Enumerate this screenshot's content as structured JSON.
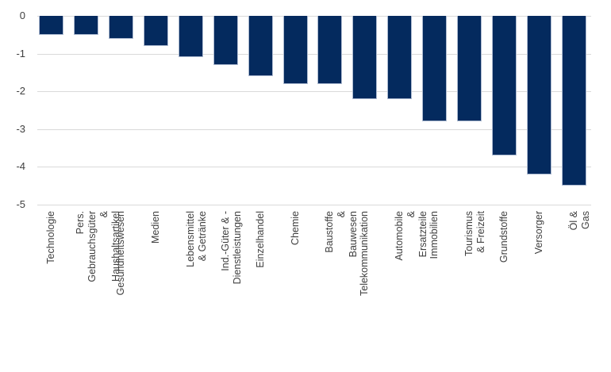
{
  "chart_data": {
    "type": "bar",
    "title": "",
    "xlabel": "",
    "ylabel": "",
    "categories": [
      "Technologie",
      "Pers. Gebrauchsgüter\n& Haushaltsartikel",
      "Gesundheitswesen",
      "Medien",
      "Lebensmittel & Getränke",
      "Ind.-Güter & -Dienstleistungen",
      "Einzelhandel",
      "Chemie",
      "Baustoffe & Bauwesen",
      "Telekommunikation",
      "Automobile & Ersatzteile",
      "Immobilien",
      "Tourismus & Freizeit",
      "Grundstoffe",
      "Versorger",
      "Öl & Gas"
    ],
    "values": [
      -0.5,
      -0.5,
      -0.6,
      -0.8,
      -1.1,
      -1.3,
      -1.6,
      -1.8,
      -1.8,
      -2.2,
      -2.2,
      -2.8,
      -2.8,
      -3.7,
      -4.2,
      -4.5
    ],
    "ylim": [
      -5,
      0
    ],
    "yticks": [
      0,
      -1,
      -2,
      -3,
      -4,
      -5
    ],
    "grid": true,
    "legend": false,
    "label_orientation": "rotated-90-bottom-to-top",
    "colors": {
      "bar_fill": "#042a5e",
      "bar_border": "#aebbd1",
      "gridline": "#d9d9d9",
      "axis_text": "#404040",
      "background": "#ffffff"
    }
  }
}
